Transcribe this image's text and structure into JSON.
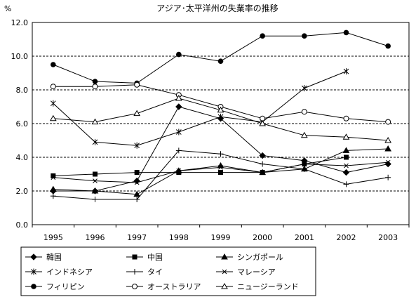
{
  "chart_data": {
    "type": "line",
    "title": "アジア･太平洋州の失業率の推移",
    "ylabel": "%",
    "xlabel": "",
    "ylim": [
      0,
      12
    ],
    "grid": true,
    "legend_position": "bottom",
    "categories": [
      "1995",
      "1996",
      "1997",
      "1998",
      "1999",
      "2000",
      "2001",
      "2002",
      "2003"
    ],
    "y_ticks": [
      "0.0",
      "2.0",
      "4.0",
      "6.0",
      "8.0",
      "10.0",
      "12.0"
    ],
    "series": [
      {
        "name": "韓国",
        "marker": "diamond",
        "values": [
          2.0,
          2.0,
          2.6,
          7.0,
          6.3,
          4.1,
          3.8,
          3.1,
          3.6
        ]
      },
      {
        "name": "中国",
        "marker": "square",
        "values": [
          2.9,
          3.0,
          3.1,
          3.1,
          3.1,
          3.1,
          3.6,
          4.0,
          null
        ]
      },
      {
        "name": "シンガポール",
        "marker": "triangle",
        "values": [
          2.1,
          2.0,
          1.8,
          3.2,
          3.5,
          3.1,
          3.3,
          4.4,
          4.5
        ]
      },
      {
        "name": "インドネシア",
        "marker": "star",
        "values": [
          7.2,
          4.9,
          4.7,
          5.5,
          6.4,
          6.1,
          8.1,
          9.1,
          null
        ]
      },
      {
        "name": "タイ",
        "marker": "plus",
        "values": [
          1.7,
          1.5,
          1.5,
          4.4,
          4.2,
          3.6,
          3.3,
          2.4,
          2.8
        ]
      },
      {
        "name": "マレーシア",
        "marker": "x",
        "values": [
          2.8,
          2.6,
          2.5,
          3.2,
          3.4,
          3.1,
          3.6,
          3.5,
          3.7
        ]
      },
      {
        "name": "フィリピン",
        "marker": "circle",
        "values": [
          9.5,
          8.5,
          8.4,
          10.1,
          9.7,
          11.2,
          11.2,
          11.4,
          10.6
        ]
      },
      {
        "name": "オーストラリア",
        "marker": "circle-open",
        "values": [
          8.2,
          8.2,
          8.3,
          7.7,
          7.0,
          6.3,
          6.7,
          6.3,
          6.1
        ]
      },
      {
        "name": "ニュージーランド",
        "marker": "triangle-open",
        "values": [
          6.3,
          6.1,
          6.6,
          7.5,
          6.8,
          6.0,
          5.3,
          5.2,
          5.0
        ]
      }
    ]
  }
}
